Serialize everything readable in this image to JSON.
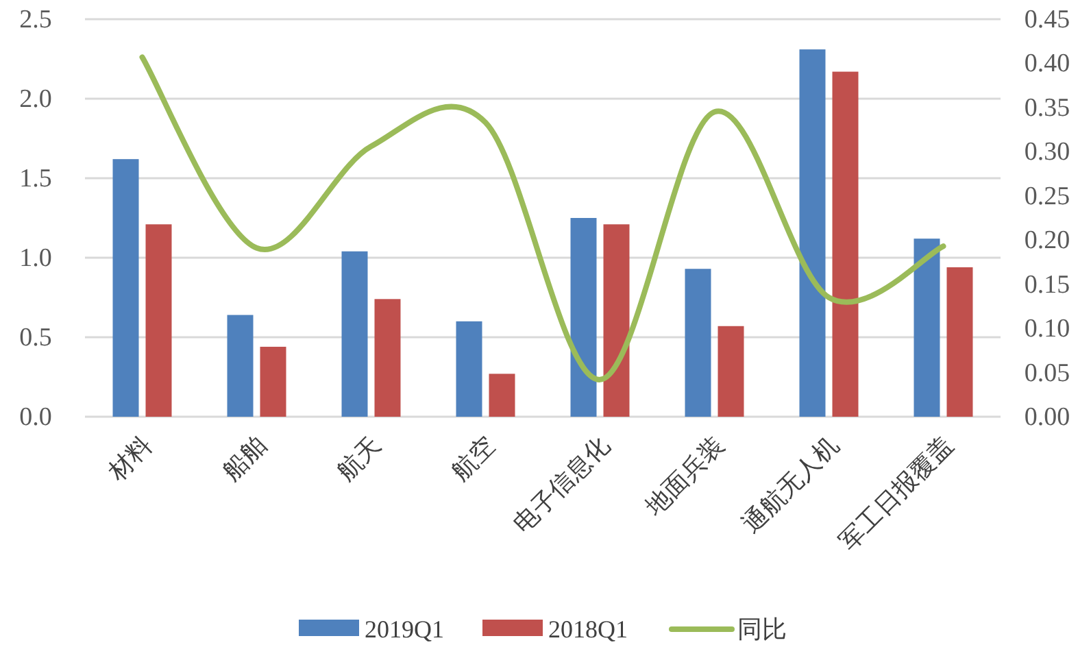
{
  "chart_data": {
    "type": "bar",
    "categories": [
      "材料",
      "船舶",
      "航天",
      "航空",
      "电子信息化",
      "地面兵装",
      "通航无人机",
      "军工日报覆盖"
    ],
    "series": [
      {
        "name": "2019Q1",
        "color": "#4f81bd",
        "values": [
          1.62,
          0.64,
          1.04,
          0.6,
          1.25,
          0.93,
          2.31,
          1.12
        ]
      },
      {
        "name": "2018Q1",
        "color": "#c0504d",
        "values": [
          1.21,
          0.44,
          0.74,
          0.27,
          1.21,
          0.57,
          2.17,
          0.94
        ]
      },
      {
        "name": "同比",
        "type": "line",
        "axis": "y2",
        "color": "#9bbb59",
        "values": [
          0.407,
          0.191,
          0.306,
          0.333,
          0.042,
          0.345,
          0.135,
          0.193
        ]
      }
    ],
    "ylim": [
      0,
      2.5
    ],
    "yticks": [
      {
        "value": 0,
        "label": "0.0"
      },
      {
        "value": 0.5,
        "label": "0.5"
      },
      {
        "value": 1,
        "label": "1.0"
      },
      {
        "value": 1.5,
        "label": "1.5"
      },
      {
        "value": 2,
        "label": "2.0"
      },
      {
        "value": 2.5,
        "label": "2.5"
      }
    ],
    "y2lim": [
      0,
      0.45
    ],
    "y2ticks": [
      {
        "value": 0,
        "label": "0.00"
      },
      {
        "value": 0.05,
        "label": "0.05"
      },
      {
        "value": 0.1,
        "label": "0.10"
      },
      {
        "value": 0.15,
        "label": "0.15"
      },
      {
        "value": 0.2,
        "label": "0.20"
      },
      {
        "value": 0.25,
        "label": "0.25"
      },
      {
        "value": 0.3,
        "label": "0.30"
      },
      {
        "value": 0.35,
        "label": "0.35"
      },
      {
        "value": 0.4,
        "label": "0.40"
      },
      {
        "value": 0.45,
        "label": "0.45"
      }
    ],
    "grid": "y",
    "legend": "bottom"
  }
}
